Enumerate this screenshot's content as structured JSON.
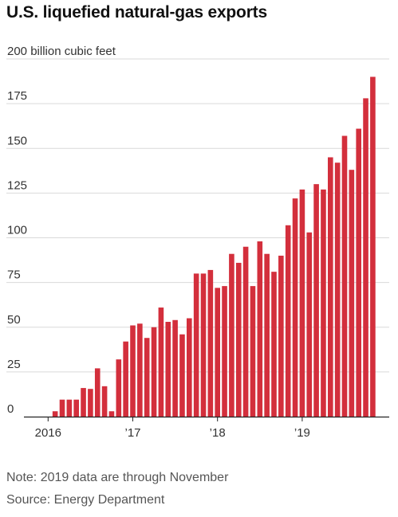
{
  "title": "U.S. liquefied natural-gas exports",
  "note": "Note: 2019 data are through November",
  "source": "Source: Energy Department",
  "chart_data": {
    "type": "bar",
    "unit": "billion cubic feet",
    "ylim": [
      0,
      200
    ],
    "y_ticks": [
      0,
      25,
      50,
      75,
      100,
      125,
      150,
      175,
      200
    ],
    "y_tick_labels": [
      "0",
      "25",
      "50",
      "75",
      "100",
      "125",
      "150",
      "175",
      "200 billion cubic feet"
    ],
    "x_tick_labels": [
      {
        "label": "2016",
        "index": 0
      },
      {
        "label": "’17",
        "index": 12
      },
      {
        "label": "’18",
        "index": 24
      },
      {
        "label": "’19",
        "index": 36
      }
    ],
    "grid": true,
    "color": "#d32f3c",
    "categories": [
      "2016-01",
      "2016-02",
      "2016-03",
      "2016-04",
      "2016-05",
      "2016-06",
      "2016-07",
      "2016-08",
      "2016-09",
      "2016-10",
      "2016-11",
      "2016-12",
      "2017-01",
      "2017-02",
      "2017-03",
      "2017-04",
      "2017-05",
      "2017-06",
      "2017-07",
      "2017-08",
      "2017-09",
      "2017-10",
      "2017-11",
      "2017-12",
      "2018-01",
      "2018-02",
      "2018-03",
      "2018-04",
      "2018-05",
      "2018-06",
      "2018-07",
      "2018-08",
      "2018-09",
      "2018-10",
      "2018-11",
      "2018-12",
      "2019-01",
      "2019-02",
      "2019-03",
      "2019-04",
      "2019-05",
      "2019-06",
      "2019-07",
      "2019-08",
      "2019-09",
      "2019-10",
      "2019-11"
    ],
    "values": [
      0,
      3,
      9.5,
      9.5,
      9.5,
      16,
      15.5,
      27,
      17,
      3,
      32,
      42,
      51,
      52,
      44,
      50,
      61,
      53,
      54,
      46,
      55,
      80,
      80,
      82,
      72,
      73,
      91,
      86,
      95,
      73,
      98,
      91,
      81,
      90,
      107,
      122,
      127,
      103,
      130,
      127,
      145,
      142,
      157,
      138,
      161,
      178,
      190
    ]
  }
}
